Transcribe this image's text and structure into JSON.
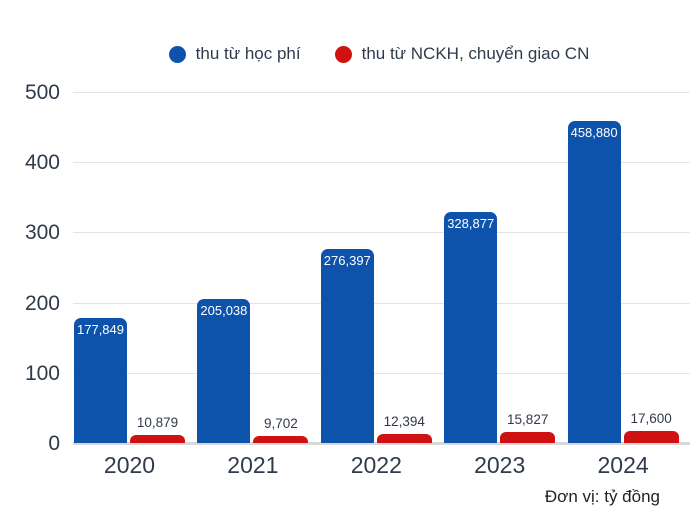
{
  "legend": [
    {
      "label": "thu từ học phí",
      "color": "#0e53ab"
    },
    {
      "label": "thu từ NCKH, chuyển giao CN",
      "color": "#d01112"
    }
  ],
  "footer_note": "Đơn vị: tỷ đồng",
  "colors": {
    "tuition_bar": "#0e53ab",
    "research_bar": "#d01112",
    "axis_text": "#2f3b4c",
    "gridline": "#e4e4e4",
    "baseline": "#d8d8d8"
  },
  "chart_data": {
    "type": "bar",
    "categories": [
      "2020",
      "2021",
      "2022",
      "2023",
      "2024"
    ],
    "series": [
      {
        "name": "thu từ học phí",
        "color": "#0e53ab",
        "values": [
          177.849,
          205.038,
          276.397,
          328.877,
          458.88
        ],
        "labels": [
          "177,849",
          "205,038",
          "276,397",
          "328,877",
          "458,880"
        ],
        "label_position": "inside-top"
      },
      {
        "name": "thu từ NCKH, chuyển giao CN",
        "color": "#d01112",
        "values": [
          10.879,
          9.702,
          12.394,
          15.827,
          17.6
        ],
        "labels": [
          "10,879",
          "9,702",
          "12,394",
          "15,827",
          "17,600"
        ],
        "label_position": "above"
      }
    ],
    "title": "",
    "xlabel": "",
    "ylabel": "",
    "unit_note": "Đơn vị: tỷ đồng",
    "ylim": [
      0,
      500
    ],
    "yticks": [
      0,
      100,
      200,
      300,
      400,
      500
    ],
    "grid": true,
    "legend_position": "top"
  }
}
